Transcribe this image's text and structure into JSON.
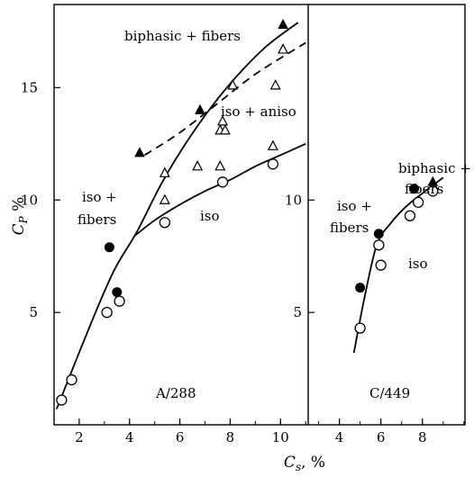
{
  "chart_data": [
    {
      "type": "scatter",
      "panel_label": "A/288",
      "xlim": [
        1,
        11.1
      ],
      "ylim": [
        0,
        18.7
      ],
      "x_ticks": [
        "2",
        "4",
        "6",
        "8",
        "10"
      ],
      "y_ticks": [
        "5",
        "10",
        "15"
      ],
      "grid": false,
      "annotations": [
        "biphasic + fibers",
        "iso + aniso",
        "iso +",
        "fibers",
        "iso"
      ],
      "series": [
        {
          "marker": "open-circle",
          "points": [
            [
              1.3,
              1.1
            ],
            [
              1.7,
              2.0
            ],
            [
              3.1,
              5.0
            ],
            [
              3.6,
              5.5
            ],
            [
              5.4,
              9.0
            ],
            [
              7.7,
              10.8
            ],
            [
              9.7,
              11.6
            ]
          ]
        },
        {
          "marker": "filled-circle",
          "points": [
            [
              3.2,
              7.9
            ],
            [
              3.5,
              5.9
            ]
          ]
        },
        {
          "marker": "open-triangle",
          "points": [
            [
              5.4,
              10.0
            ],
            [
              5.4,
              11.2
            ],
            [
              6.7,
              11.5
            ],
            [
              7.6,
              11.5
            ],
            [
              7.6,
              13.1
            ],
            [
              7.7,
              13.5
            ],
            [
              7.8,
              13.1
            ],
            [
              8.1,
              15.1
            ],
            [
              9.7,
              12.4
            ],
            [
              9.8,
              15.1
            ],
            [
              10.1,
              16.7
            ]
          ]
        },
        {
          "marker": "filled-triangle",
          "points": [
            [
              4.4,
              12.1
            ],
            [
              6.8,
              14.0
            ],
            [
              10.1,
              17.8
            ]
          ]
        }
      ],
      "curves": [
        {
          "style": "solid",
          "points": [
            [
              1.1,
              0.7
            ],
            [
              2.5,
              4.6
            ],
            [
              3.4,
              6.9
            ],
            [
              4.3,
              8.6
            ],
            [
              5.3,
              10.8
            ],
            [
              6.4,
              12.8
            ],
            [
              7.5,
              14.5
            ],
            [
              8.5,
              15.8
            ],
            [
              9.5,
              16.9
            ],
            [
              10.7,
              17.9
            ]
          ]
        },
        {
          "style": "solid",
          "points": [
            [
              4.2,
              8.4
            ],
            [
              5.0,
              9.1
            ],
            [
              6.0,
              9.8
            ],
            [
              7.0,
              10.4
            ],
            [
              8.0,
              10.9
            ],
            [
              9.0,
              11.5
            ],
            [
              10.0,
              12.0
            ],
            [
              11.0,
              12.5
            ]
          ]
        },
        {
          "style": "dashed",
          "points": [
            [
              4.6,
              12.0
            ],
            [
              6.0,
              13.0
            ],
            [
              7.5,
              14.3
            ],
            [
              9.0,
              15.6
            ],
            [
              11.0,
              17.0
            ]
          ]
        }
      ]
    },
    {
      "type": "scatter",
      "panel_label": "C/449",
      "xlim": [
        2.5,
        10.05
      ],
      "ylim": [
        0,
        18.7
      ],
      "x_ticks": [
        "4",
        "6",
        "8"
      ],
      "y_ticks": [
        "5",
        "10"
      ],
      "grid": false,
      "annotations": [
        "biphasic +",
        "fibers",
        "iso +",
        "fibers",
        "iso"
      ],
      "series": [
        {
          "marker": "open-circle",
          "points": [
            [
              5.0,
              4.3
            ],
            [
              5.9,
              8.0
            ],
            [
              6.0,
              7.1
            ],
            [
              7.4,
              9.3
            ],
            [
              7.8,
              9.9
            ],
            [
              8.5,
              10.4
            ]
          ]
        },
        {
          "marker": "filled-circle",
          "points": [
            [
              5.0,
              6.1
            ],
            [
              5.9,
              8.5
            ],
            [
              7.6,
              10.5
            ]
          ]
        },
        {
          "marker": "filled-triangle",
          "points": [
            [
              8.5,
              10.8
            ]
          ]
        }
      ],
      "curves": [
        {
          "style": "solid",
          "points": [
            [
              4.7,
              3.2
            ],
            [
              5.2,
              5.6
            ],
            [
              5.8,
              8.0
            ],
            [
              6.5,
              9.0
            ],
            [
              7.2,
              9.7
            ],
            [
              8.0,
              10.3
            ],
            [
              9.0,
              11.0
            ]
          ]
        }
      ]
    }
  ],
  "axes": {
    "xlabel": "C_s, %",
    "ylabel": "C_P %"
  }
}
